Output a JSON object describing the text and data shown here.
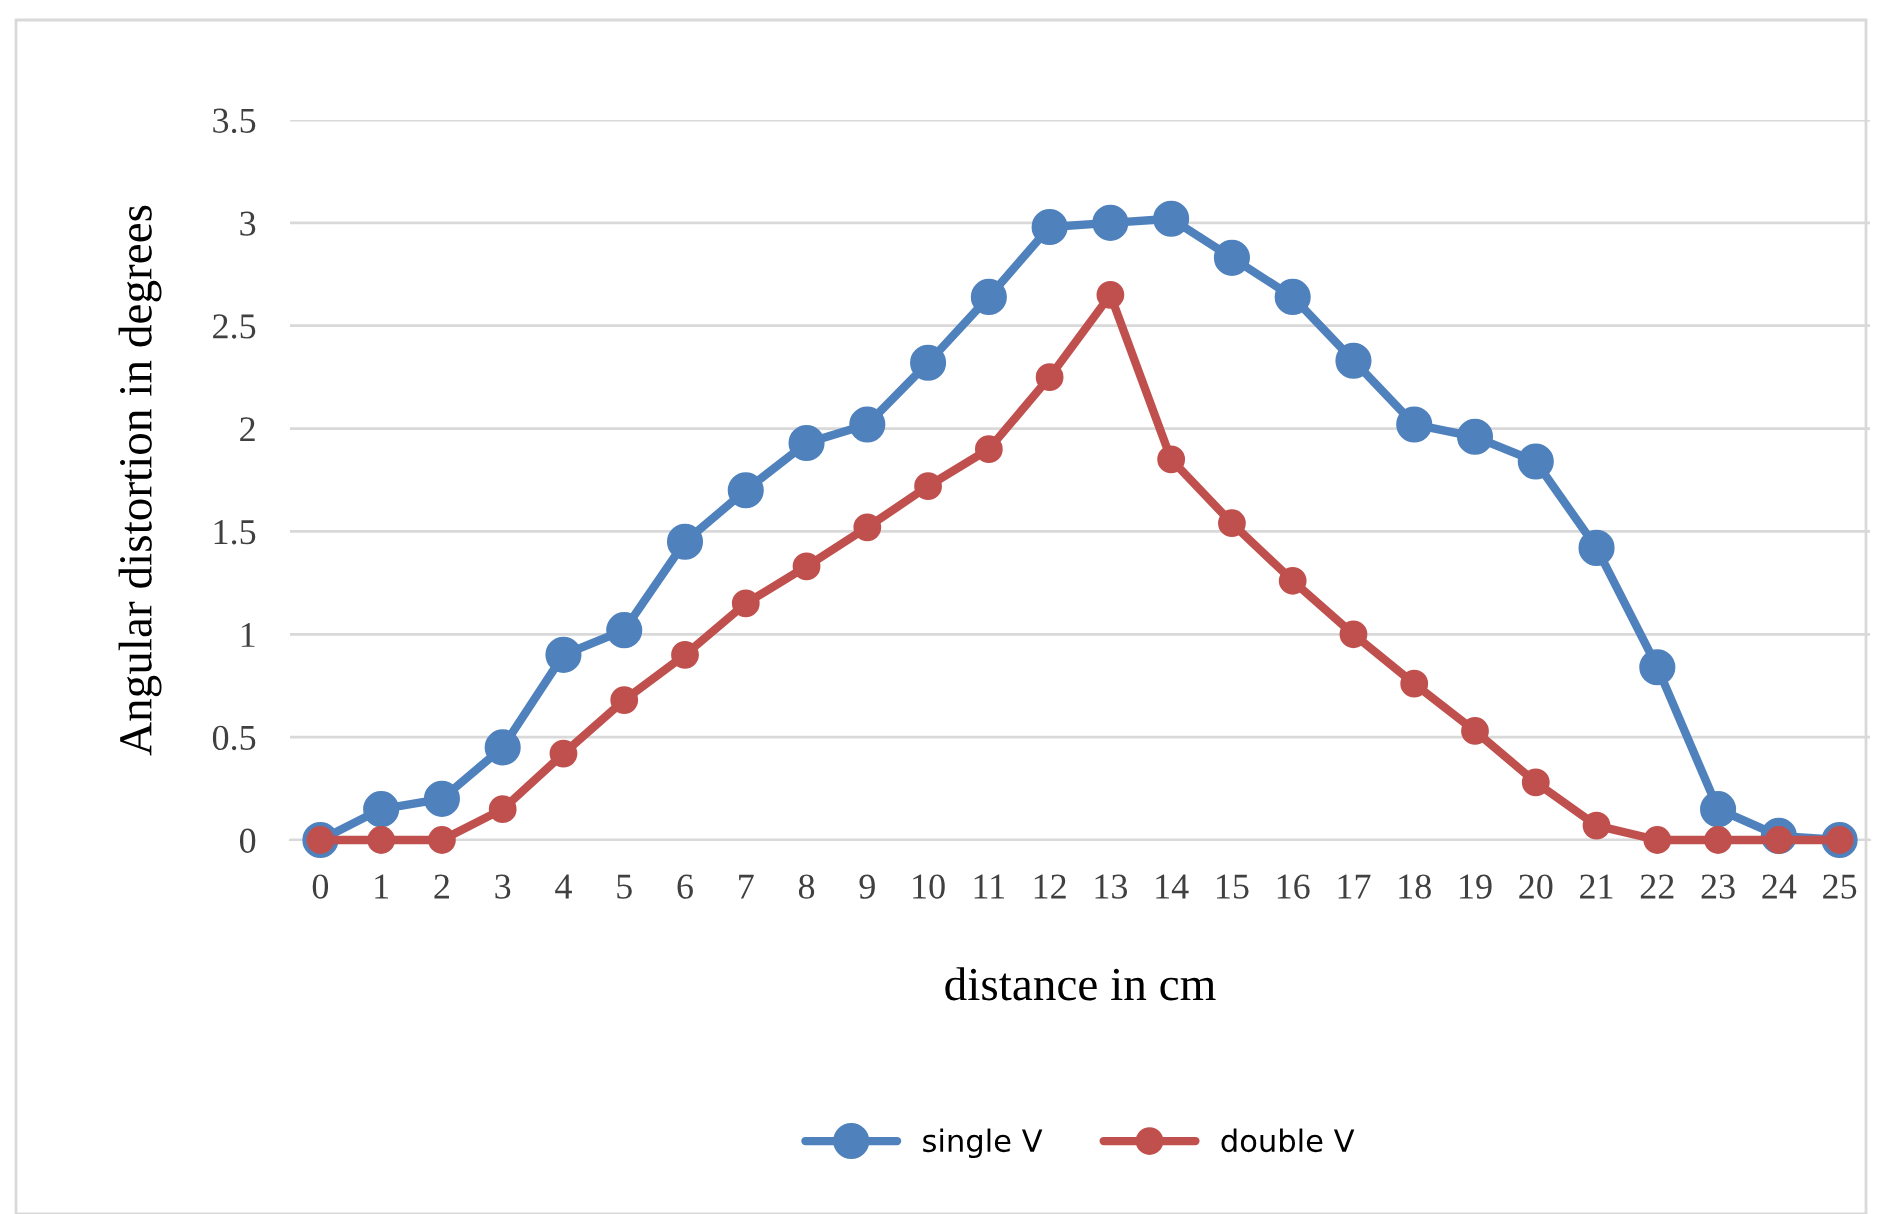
{
  "chart_data": {
    "type": "line",
    "xlabel": "distance in cm",
    "ylabel": "Angular distortion in degrees",
    "categories": [
      "0",
      "1",
      "2",
      "3",
      "4",
      "5",
      "6",
      "7",
      "8",
      "9",
      "10",
      "11",
      "12",
      "13",
      "14",
      "15",
      "16",
      "17",
      "18",
      "19",
      "20",
      "21",
      "22",
      "23",
      "24",
      "25"
    ],
    "series": [
      {
        "name": "single V",
        "color": "#4f81bd",
        "values": [
          0,
          0.15,
          0.2,
          0.45,
          0.9,
          1.02,
          1.45,
          1.7,
          1.93,
          2.02,
          2.32,
          2.64,
          2.98,
          3.0,
          3.02,
          2.83,
          2.64,
          2.33,
          2.02,
          1.96,
          1.84,
          1.42,
          0.84,
          0.15,
          0.02,
          0
        ]
      },
      {
        "name": "double V",
        "color": "#c0504d",
        "values": [
          0,
          0,
          0,
          0.15,
          0.42,
          0.68,
          0.9,
          1.15,
          1.33,
          1.52,
          1.72,
          1.9,
          2.25,
          2.65,
          1.85,
          1.54,
          1.26,
          1.0,
          0.76,
          0.53,
          0.28,
          0.07,
          0,
          0,
          0,
          0
        ]
      }
    ],
    "ylim": [
      0,
      3.5
    ],
    "yticks": [
      0,
      0.5,
      1,
      1.5,
      2,
      2.5,
      3,
      3.5
    ],
    "grid": "y",
    "legend": "bottom",
    "marker": "circle",
    "line_style": "solid"
  }
}
